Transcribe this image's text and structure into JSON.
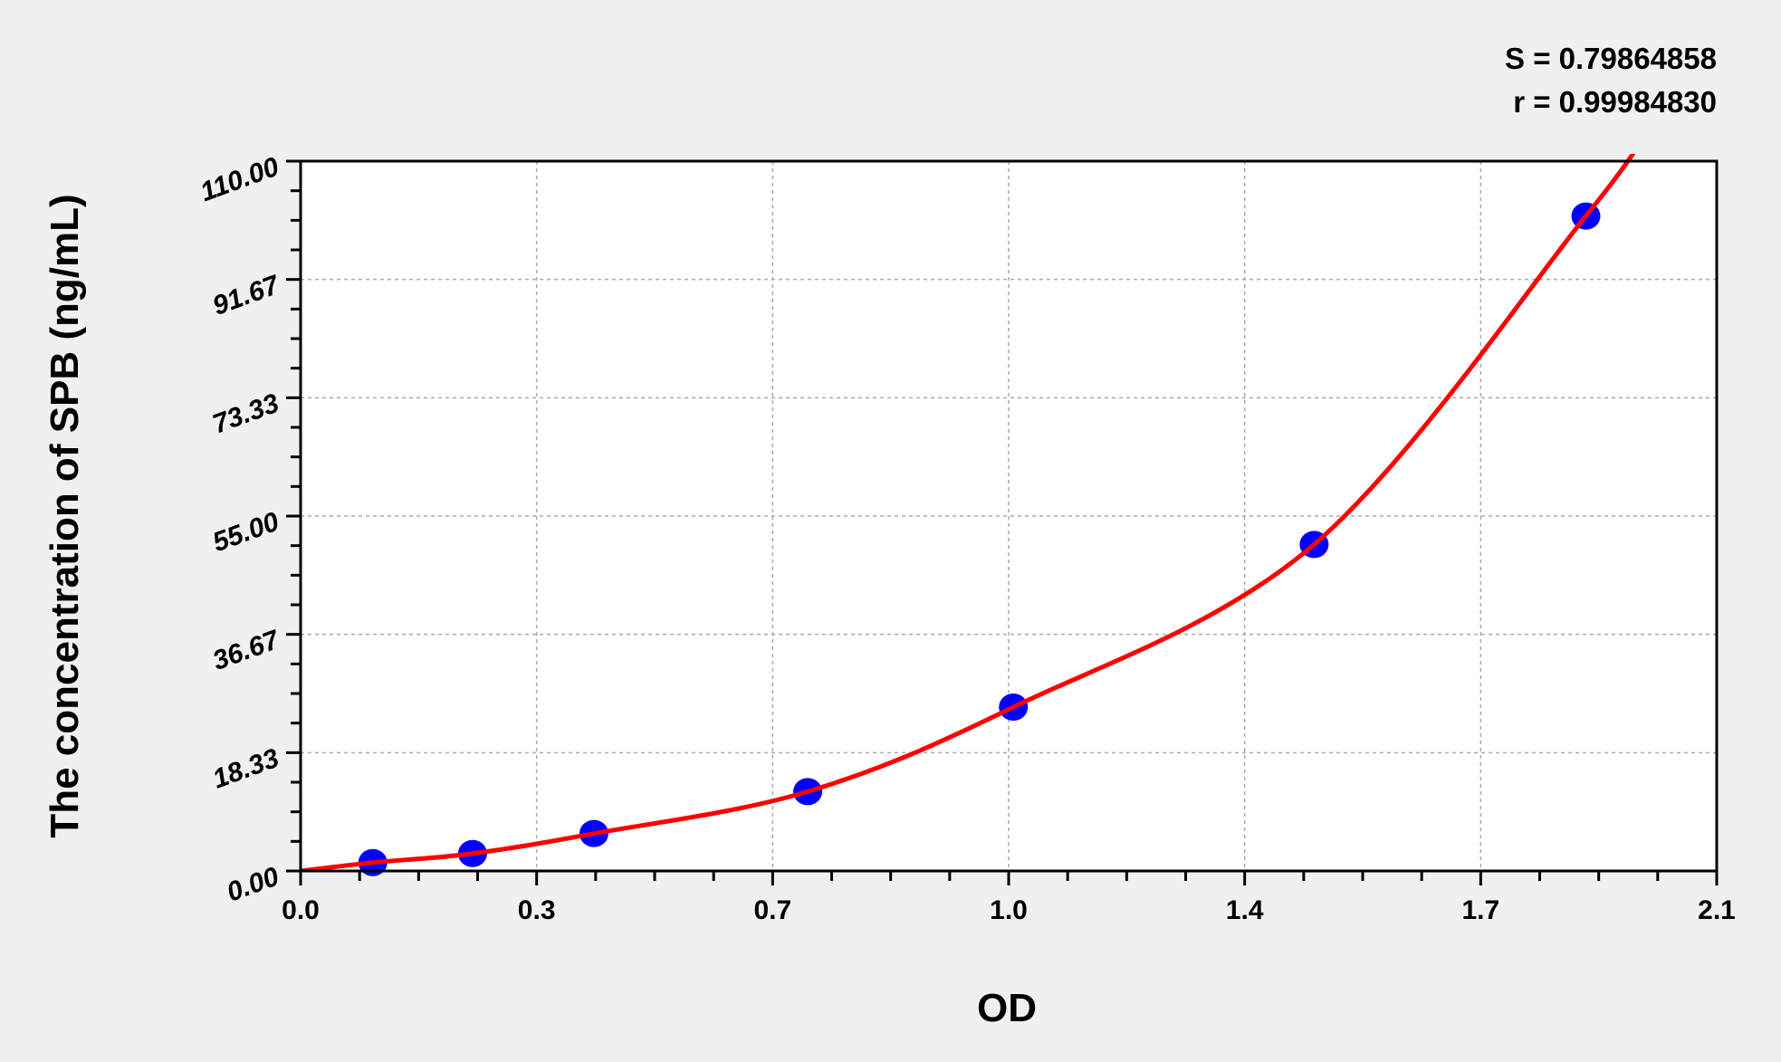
{
  "chart_data": {
    "type": "scatter",
    "title": "",
    "annotations": [
      "S = 0.79864858",
      "r = 0.99984830"
    ],
    "xlabel": "OD",
    "ylabel": "The concentration of SPB (ng/mL)",
    "xlim": [
      0,
      2.1
    ],
    "ylim": [
      0,
      110
    ],
    "x_tick_labels": [
      "0.0",
      "0.3",
      "0.7",
      "1.0",
      "1.4",
      "1.7",
      "2.1"
    ],
    "y_tick_labels": [
      "0.00",
      "18.33",
      "36.67",
      "55.00",
      "73.33",
      "91.67",
      "110.00"
    ],
    "grid": true,
    "points": [
      {
        "x": 0.107,
        "y": 1.3
      },
      {
        "x": 0.255,
        "y": 2.7
      },
      {
        "x": 0.435,
        "y": 5.8
      },
      {
        "x": 0.752,
        "y": 12.3
      },
      {
        "x": 1.057,
        "y": 25.4
      },
      {
        "x": 1.503,
        "y": 50.6
      },
      {
        "x": 1.906,
        "y": 101.5
      }
    ],
    "point_color": "#0000ff",
    "curve_color": "#ff0000",
    "legend": "none"
  }
}
